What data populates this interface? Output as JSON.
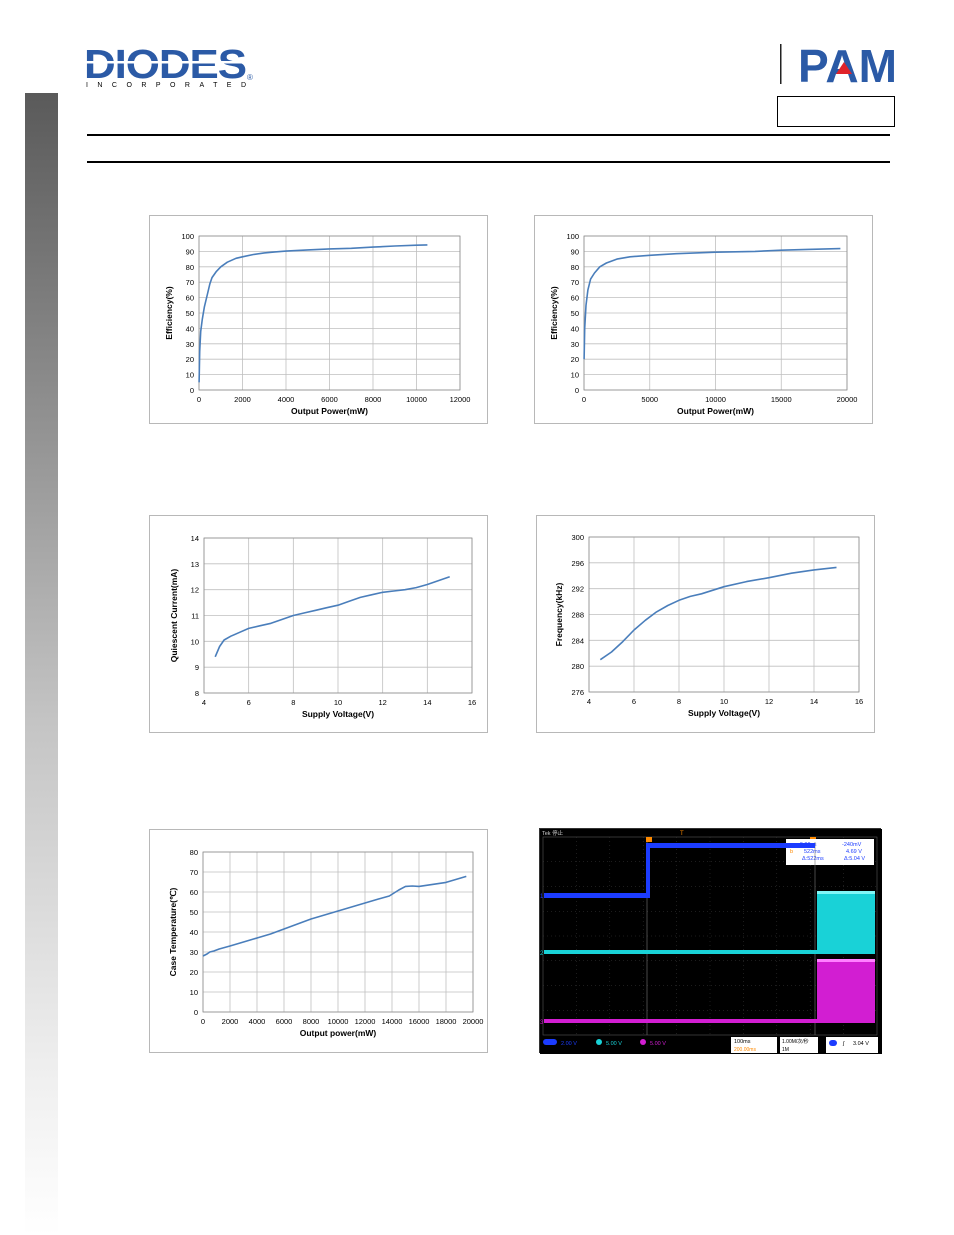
{
  "header": {
    "diodes_logo_text": "DIODES",
    "diodes_logo_subtext": "INCORPORATED",
    "pam_logo_text": "PAM",
    "part_number": ""
  },
  "chart_data": [
    {
      "type": "line",
      "title": "",
      "xlabel": "Output Power(mW)",
      "ylabel": "Efficiency(%)",
      "xlim": [
        0,
        12000
      ],
      "ylim": [
        0,
        100
      ],
      "xticks": [
        0,
        2000,
        4000,
        6000,
        8000,
        10000,
        12000
      ],
      "yticks": [
        0,
        10,
        20,
        30,
        40,
        50,
        60,
        70,
        80,
        90,
        100
      ],
      "grid": true,
      "color": "#4a7ebb",
      "x": [
        5,
        30,
        80,
        150,
        250,
        400,
        500,
        600,
        800,
        1000,
        1300,
        1700,
        2000,
        2500,
        3000,
        3500,
        4000,
        5000,
        6000,
        7000,
        8000,
        9000,
        10000,
        10500
      ],
      "y": [
        5,
        25,
        38,
        46,
        54,
        63,
        69,
        73,
        77,
        80,
        83,
        85.5,
        86.5,
        88,
        89,
        89.7,
        90.2,
        91,
        91.6,
        92,
        92.8,
        93.5,
        94,
        94.2
      ]
    },
    {
      "type": "line",
      "title": "",
      "xlabel": "Output Power(mW)",
      "ylabel": "Efficiency(%)",
      "xlim": [
        0,
        20000
      ],
      "ylim": [
        0,
        100
      ],
      "xticks": [
        0,
        5000,
        10000,
        15000,
        20000
      ],
      "yticks": [
        0,
        10,
        20,
        30,
        40,
        50,
        60,
        70,
        80,
        90,
        100
      ],
      "grid": true,
      "color": "#4a7ebb",
      "x": [
        5,
        50,
        150,
        300,
        500,
        800,
        1200,
        1700,
        2500,
        3500,
        5000,
        7000,
        10000,
        13000,
        15000,
        17000,
        19500
      ],
      "y": [
        20,
        40,
        55,
        65,
        72,
        76,
        80,
        82.5,
        85,
        86.5,
        87.5,
        88.5,
        89.5,
        90,
        90.8,
        91.3,
        91.8
      ]
    },
    {
      "type": "line",
      "title": "",
      "xlabel": "Supply Voltage(V)",
      "ylabel": "Quiescent Current(mA)",
      "xlim": [
        4,
        16
      ],
      "ylim": [
        8,
        14
      ],
      "xticks": [
        4,
        6,
        8,
        10,
        12,
        14,
        16
      ],
      "yticks": [
        8,
        9,
        10,
        11,
        12,
        13,
        14
      ],
      "grid": true,
      "color": "#4a7ebb",
      "x": [
        4.5,
        4.7,
        4.9,
        5.2,
        5.6,
        6,
        6.5,
        7,
        7.5,
        8,
        8.5,
        9,
        9.5,
        10,
        10.5,
        11,
        11.5,
        12,
        12.5,
        13,
        13.5,
        14,
        14.5,
        15
      ],
      "y": [
        9.4,
        9.8,
        10.05,
        10.2,
        10.35,
        10.5,
        10.6,
        10.7,
        10.85,
        11,
        11.1,
        11.2,
        11.3,
        11.4,
        11.55,
        11.7,
        11.8,
        11.9,
        11.95,
        12,
        12.08,
        12.2,
        12.35,
        12.5
      ]
    },
    {
      "type": "line",
      "title": "",
      "xlabel": "Supply Voltage(V)",
      "ylabel": "Frequency(kHz)",
      "xlim": [
        4,
        16
      ],
      "ylim": [
        276,
        300
      ],
      "xticks": [
        4,
        6,
        8,
        10,
        12,
        14,
        16
      ],
      "yticks": [
        276,
        280,
        284,
        288,
        292,
        296,
        300
      ],
      "grid": true,
      "color": "#4a7ebb",
      "x": [
        4.5,
        5,
        5.5,
        6,
        6.5,
        7,
        7.5,
        8,
        8.5,
        9,
        10,
        11,
        12,
        13,
        14,
        15
      ],
      "y": [
        281,
        282.2,
        283.8,
        285.6,
        287.1,
        288.4,
        289.4,
        290.2,
        290.8,
        291.2,
        292.3,
        293.1,
        293.7,
        294.4,
        294.9,
        295.3
      ]
    },
    {
      "type": "line",
      "title": "",
      "xlabel": "Output  power(mW)",
      "ylabel": "Case Temperature(℃)",
      "xlim": [
        0,
        20000
      ],
      "ylim": [
        0,
        80
      ],
      "xticks": [
        0,
        2000,
        4000,
        6000,
        8000,
        10000,
        12000,
        14000,
        16000,
        18000,
        20000
      ],
      "yticks": [
        0,
        10,
        20,
        30,
        40,
        50,
        60,
        70,
        80
      ],
      "grid": true,
      "color": "#4a7ebb",
      "x": [
        0,
        300,
        500,
        800,
        1200,
        2000,
        3000,
        4000,
        5000,
        6000,
        7000,
        8000,
        9000,
        10000,
        11000,
        12000,
        13000,
        13800,
        14500,
        15000,
        15500,
        16000,
        17000,
        18000,
        19500
      ],
      "y": [
        28,
        29,
        30,
        30.5,
        31.5,
        33,
        35,
        37,
        39,
        41.5,
        44,
        46.5,
        48.5,
        50.5,
        52.5,
        54.5,
        56.5,
        58,
        61,
        62.8,
        63,
        62.8,
        63.8,
        64.8,
        67.8
      ]
    }
  ],
  "scope": {
    "cursor_delta_time": "-9.00µs",
    "cursor_delta_voltage": "-240mV",
    "cursor_time": "522ms",
    "cursor_voltage": "4.69 V",
    "delta_time": "Δ:522ms",
    "delta_voltage": "Δ:5.04 V",
    "ch1_scale": "2.00 V",
    "ch2_scale": "5.00 V",
    "ch3_scale": "5.00 V",
    "timebase": "100ms",
    "sample_rate": "1.00M/次/秒",
    "trigger_pos": "200.00ms",
    "trigger_level": "3.04 V",
    "colors": {
      "ch1": "#1c3cff",
      "ch2": "#19d2d7",
      "ch3": "#d21ed2",
      "trigger": "#ff8a00"
    }
  }
}
